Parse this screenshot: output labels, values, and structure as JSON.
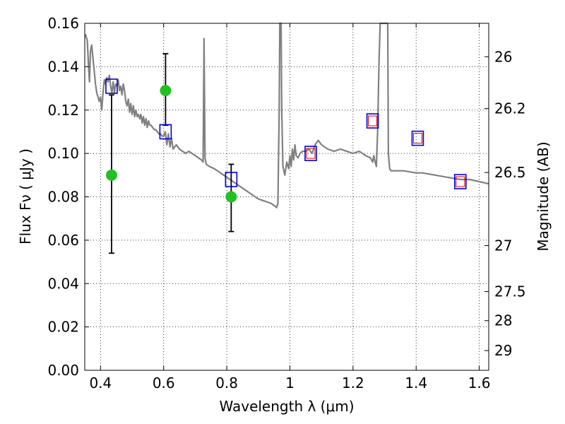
{
  "chart_data": {
    "type": "line",
    "xlabel": "Wavelength  λ (μm)",
    "ylabel": "Flux  Fν  ( μJy )",
    "y2label": "Magnitude (AB)",
    "xlim": [
      0.35,
      1.63
    ],
    "ylim": [
      0.0,
      0.16
    ],
    "grid": true,
    "x_ticks": [
      {
        "value": 0.4,
        "label": "0.4"
      },
      {
        "value": 0.6,
        "label": "0.6"
      },
      {
        "value": 0.8,
        "label": "0.8"
      },
      {
        "value": 1.0,
        "label": "1"
      },
      {
        "value": 1.2,
        "label": "1.2"
      },
      {
        "value": 1.4,
        "label": "1.4"
      },
      {
        "value": 1.6,
        "label": "1.6"
      }
    ],
    "y_ticks": [
      {
        "value": 0.0,
        "label": "0.00"
      },
      {
        "value": 0.02,
        "label": "0.02"
      },
      {
        "value": 0.04,
        "label": "0.04"
      },
      {
        "value": 0.06,
        "label": "0.06"
      },
      {
        "value": 0.08,
        "label": "0.08"
      },
      {
        "value": 0.1,
        "label": "0.10"
      },
      {
        "value": 0.12,
        "label": "0.12"
      },
      {
        "value": 0.14,
        "label": "0.14"
      },
      {
        "value": 0.16,
        "label": "0.16"
      }
    ],
    "y2_ticks": [
      {
        "flux": 0.1446,
        "label": "26"
      },
      {
        "flux": 0.1207,
        "label": "26.2"
      },
      {
        "flux": 0.0912,
        "label": "26.5"
      },
      {
        "flux": 0.0575,
        "label": "27"
      },
      {
        "flux": 0.0363,
        "label": "27.5"
      },
      {
        "flux": 0.0229,
        "label": "28"
      },
      {
        "flux": 0.0091,
        "label": "29"
      }
    ],
    "series": [
      {
        "kind": "model-spectrum",
        "color": "#808080",
        "points": [
          [
            0.352,
            0.155
          ],
          [
            0.358,
            0.152
          ],
          [
            0.362,
            0.14
          ],
          [
            0.365,
            0.133
          ],
          [
            0.368,
            0.147
          ],
          [
            0.372,
            0.15
          ],
          [
            0.376,
            0.144
          ],
          [
            0.38,
            0.138
          ],
          [
            0.384,
            0.132
          ],
          [
            0.388,
            0.128
          ],
          [
            0.392,
            0.126
          ],
          [
            0.396,
            0.124
          ],
          [
            0.4,
            0.126
          ],
          [
            0.404,
            0.12
          ],
          [
            0.408,
            0.128
          ],
          [
            0.412,
            0.134
          ],
          [
            0.416,
            0.132
          ],
          [
            0.42,
            0.135
          ],
          [
            0.424,
            0.133
          ],
          [
            0.428,
            0.136
          ],
          [
            0.432,
            0.131
          ],
          [
            0.436,
            0.128
          ],
          [
            0.44,
            0.133
          ],
          [
            0.444,
            0.128
          ],
          [
            0.448,
            0.132
          ],
          [
            0.452,
            0.131
          ],
          [
            0.456,
            0.134
          ],
          [
            0.46,
            0.129
          ],
          [
            0.464,
            0.131
          ],
          [
            0.468,
            0.127
          ],
          [
            0.472,
            0.132
          ],
          [
            0.476,
            0.129
          ],
          [
            0.48,
            0.124
          ],
          [
            0.484,
            0.122
          ],
          [
            0.488,
            0.125
          ],
          [
            0.492,
            0.119
          ],
          [
            0.496,
            0.123
          ],
          [
            0.5,
            0.118
          ],
          [
            0.504,
            0.122
          ],
          [
            0.508,
            0.117
          ],
          [
            0.512,
            0.12
          ],
          [
            0.516,
            0.117
          ],
          [
            0.52,
            0.118
          ],
          [
            0.524,
            0.116
          ],
          [
            0.528,
            0.118
          ],
          [
            0.532,
            0.114
          ],
          [
            0.536,
            0.117
          ],
          [
            0.54,
            0.113
          ],
          [
            0.544,
            0.116
          ],
          [
            0.548,
            0.112
          ],
          [
            0.552,
            0.115
          ],
          [
            0.556,
            0.113
          ],
          [
            0.56,
            0.113
          ],
          [
            0.565,
            0.112
          ],
          [
            0.57,
            0.111
          ],
          [
            0.575,
            0.111
          ],
          [
            0.58,
            0.11
          ],
          [
            0.585,
            0.109
          ],
          [
            0.59,
            0.109
          ],
          [
            0.595,
            0.108
          ],
          [
            0.6,
            0.108
          ],
          [
            0.605,
            0.11
          ],
          [
            0.61,
            0.104
          ],
          [
            0.615,
            0.109
          ],
          [
            0.62,
            0.103
          ],
          [
            0.625,
            0.107
          ],
          [
            0.63,
            0.102
          ],
          [
            0.64,
            0.104
          ],
          [
            0.65,
            0.102
          ],
          [
            0.66,
            0.101
          ],
          [
            0.67,
            0.1
          ],
          [
            0.68,
            0.101
          ],
          [
            0.69,
            0.1
          ],
          [
            0.7,
            0.099
          ],
          [
            0.71,
            0.098
          ],
          [
            0.72,
            0.097
          ],
          [
            0.725,
            0.096
          ],
          [
            0.728,
            0.153
          ],
          [
            0.731,
            0.098
          ],
          [
            0.735,
            0.095
          ],
          [
            0.745,
            0.094
          ],
          [
            0.76,
            0.093
          ],
          [
            0.78,
            0.091
          ],
          [
            0.8,
            0.089
          ],
          [
            0.82,
            0.087
          ],
          [
            0.84,
            0.085
          ],
          [
            0.86,
            0.083
          ],
          [
            0.88,
            0.081
          ],
          [
            0.9,
            0.079
          ],
          [
            0.92,
            0.078
          ],
          [
            0.94,
            0.077
          ],
          [
            0.95,
            0.076
          ],
          [
            0.958,
            0.075
          ],
          [
            0.962,
            0.077
          ],
          [
            0.966,
            0.12
          ],
          [
            0.968,
            0.16
          ],
          [
            0.972,
            0.16
          ],
          [
            0.974,
            0.12
          ],
          [
            0.978,
            0.094
          ],
          [
            0.984,
            0.09
          ],
          [
            0.99,
            0.096
          ],
          [
            0.996,
            0.093
          ],
          [
            1.0,
            0.099
          ],
          [
            1.004,
            0.094
          ],
          [
            1.008,
            0.102
          ],
          [
            1.012,
            0.097
          ],
          [
            1.016,
            0.104
          ],
          [
            1.02,
            0.099
          ],
          [
            1.026,
            0.098
          ],
          [
            1.032,
            0.1
          ],
          [
            1.04,
            0.101
          ],
          [
            1.05,
            0.101
          ],
          [
            1.06,
            0.102
          ],
          [
            1.07,
            0.1
          ],
          [
            1.08,
            0.104
          ],
          [
            1.09,
            0.106
          ],
          [
            1.1,
            0.104
          ],
          [
            1.11,
            0.103
          ],
          [
            1.12,
            0.102
          ],
          [
            1.14,
            0.101
          ],
          [
            1.16,
            0.102
          ],
          [
            1.18,
            0.101
          ],
          [
            1.2,
            0.1
          ],
          [
            1.22,
            0.101
          ],
          [
            1.24,
            0.099
          ],
          [
            1.255,
            0.098
          ],
          [
            1.262,
            0.096
          ],
          [
            1.266,
            0.099
          ],
          [
            1.27,
            0.096
          ],
          [
            1.274,
            0.094
          ],
          [
            1.278,
            0.11
          ],
          [
            1.282,
            0.14
          ],
          [
            1.286,
            0.16
          ],
          [
            1.3,
            0.16
          ],
          [
            1.31,
            0.16
          ],
          [
            1.312,
            0.1
          ],
          [
            1.316,
            0.093
          ],
          [
            1.32,
            0.092
          ],
          [
            1.34,
            0.092
          ],
          [
            1.36,
            0.092
          ],
          [
            1.4,
            0.091
          ],
          [
            1.42,
            0.091
          ],
          [
            1.46,
            0.09
          ],
          [
            1.5,
            0.089
          ],
          [
            1.54,
            0.088
          ],
          [
            1.57,
            0.088
          ],
          [
            1.6,
            0.087
          ],
          [
            1.63,
            0.086
          ]
        ]
      },
      {
        "kind": "observed-points",
        "color": "#22c022",
        "points": [
          {
            "x": 0.435,
            "y": 0.09,
            "err_low": 0.054,
            "err_high": 0.127
          },
          {
            "x": 0.606,
            "y": 0.129,
            "err_low": 0.113,
            "err_high": 0.146
          },
          {
            "x": 0.814,
            "y": 0.08,
            "err_low": 0.064,
            "err_high": 0.095
          }
        ]
      },
      {
        "kind": "model-band-flux",
        "color": "#0000dd",
        "points": [
          [
            0.435,
            0.131
          ],
          [
            0.606,
            0.11
          ],
          [
            0.814,
            0.088
          ],
          [
            1.066,
            0.1
          ],
          [
            1.262,
            0.115
          ],
          [
            1.405,
            0.107
          ],
          [
            1.54,
            0.087
          ]
        ]
      },
      {
        "kind": "model-band-flux-inner",
        "color": "#dd0000",
        "points": [
          [
            1.066,
            0.1
          ],
          [
            1.262,
            0.115
          ],
          [
            1.405,
            0.107
          ],
          [
            1.54,
            0.087
          ]
        ]
      }
    ]
  }
}
